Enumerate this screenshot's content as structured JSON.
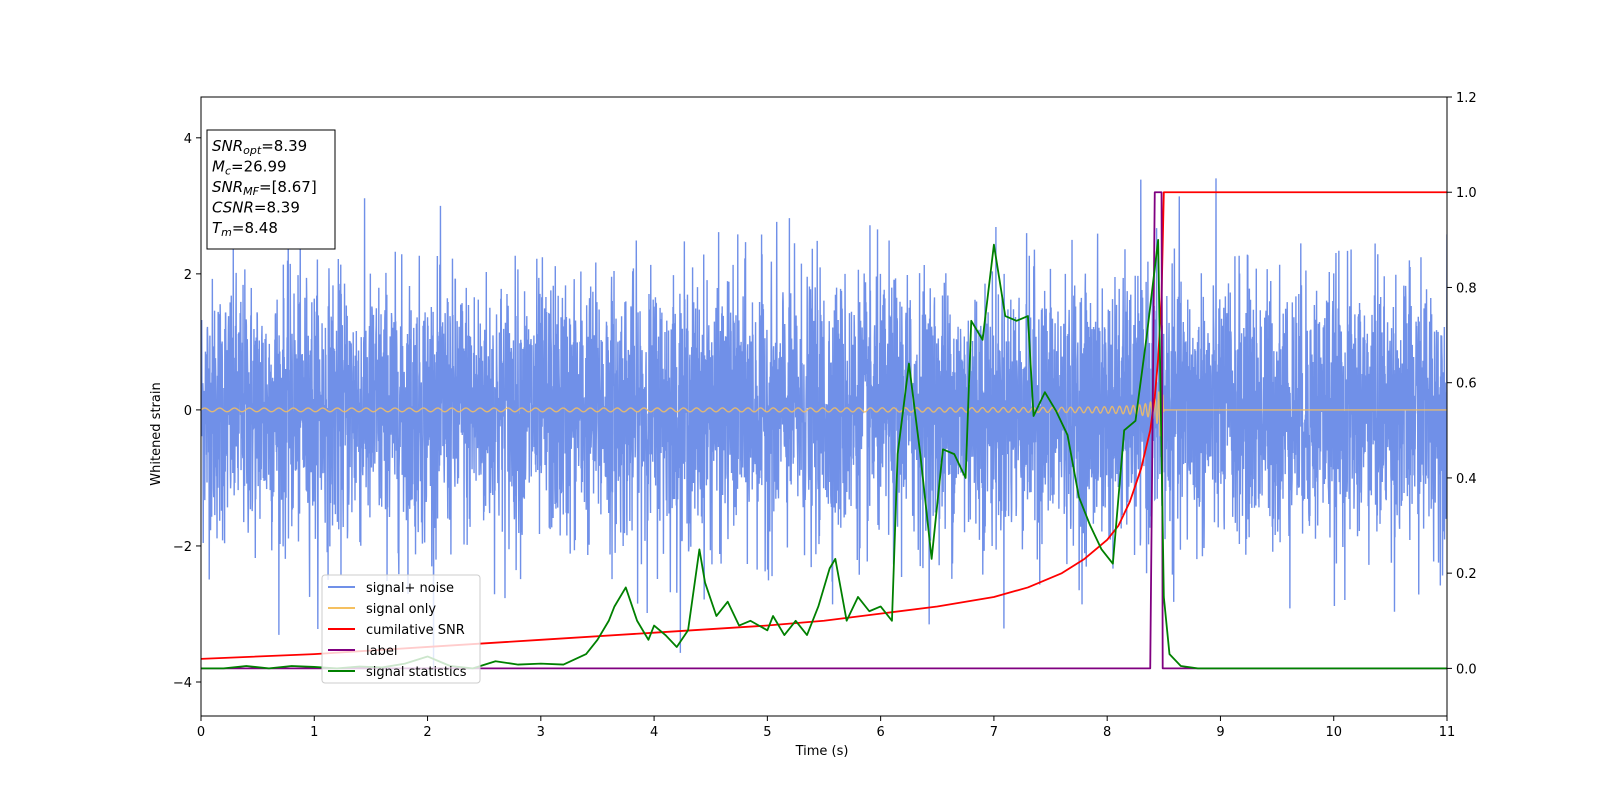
{
  "chart_data": {
    "type": "line",
    "xlabel": "Time (s)",
    "ylabel": "Whitened strain",
    "xlim": [
      0,
      11
    ],
    "ylim_left": [
      -4.5,
      4.6
    ],
    "ylim_right": [
      -0.1,
      1.2
    ],
    "x_ticks": [
      0,
      1,
      2,
      3,
      4,
      5,
      6,
      7,
      8,
      9,
      10,
      11
    ],
    "y_ticks_left": [
      -4,
      -2,
      0,
      2,
      4
    ],
    "y_ticks_right": [
      0.0,
      0.2,
      0.4,
      0.6,
      0.8,
      1.0,
      1.2
    ],
    "legend_position": "lower-left",
    "grid": false,
    "annotation": {
      "lines": [
        {
          "var": "SNR",
          "sub": "opt",
          "text": "=8.39"
        },
        {
          "var": "M",
          "sub": "c",
          "text": "=26.99"
        },
        {
          "var": "SNR",
          "sub": "MF",
          "text": "=[8.67]"
        },
        {
          "var": "CSNR",
          "sub": "",
          "text": "=8.39"
        },
        {
          "var": "T",
          "sub": "m",
          "text": "=8.48"
        }
      ]
    },
    "series": [
      {
        "name": "signal+ noise",
        "axis": "left",
        "color": "#7090e8",
        "noise_band": {
          "typical_min": -2.0,
          "typical_max": 2.0,
          "spike_max": 4.2,
          "spike_min": -4.0
        }
      },
      {
        "name": "signal only",
        "axis": "left",
        "color": "#f5c060",
        "chirp": {
          "start": 0,
          "merger": 8.48,
          "end": 8.5,
          "amplitude_peak": 1.0
        }
      },
      {
        "name": "cumilative SNR",
        "axis": "right",
        "color": "#ff0000",
        "x": [
          0,
          1,
          2,
          3,
          4,
          5,
          5.5,
          6,
          6.5,
          7,
          7.3,
          7.6,
          7.8,
          8.0,
          8.1,
          8.2,
          8.3,
          8.38,
          8.42,
          8.45,
          8.48,
          8.5,
          9,
          10,
          11
        ],
        "values": [
          0.02,
          0.03,
          0.045,
          0.06,
          0.075,
          0.09,
          0.1,
          0.115,
          0.13,
          0.15,
          0.17,
          0.2,
          0.23,
          0.27,
          0.3,
          0.35,
          0.42,
          0.5,
          0.57,
          0.65,
          0.78,
          1.0,
          1.0,
          1.0,
          1.0
        ]
      },
      {
        "name": "label",
        "axis": "right",
        "color": "#800080",
        "x": [
          0,
          8.38,
          8.42,
          8.48,
          8.49,
          11
        ],
        "values": [
          0,
          0,
          1.0,
          1.0,
          0,
          0
        ]
      },
      {
        "name": "signal statistics",
        "axis": "right",
        "color": "#008000",
        "x": [
          0,
          0.2,
          0.4,
          0.6,
          0.8,
          1.0,
          1.2,
          1.4,
          1.6,
          1.8,
          2.0,
          2.1,
          2.2,
          2.4,
          2.6,
          2.8,
          3.0,
          3.2,
          3.4,
          3.5,
          3.6,
          3.65,
          3.75,
          3.85,
          3.95,
          4.0,
          4.1,
          4.2,
          4.3,
          4.4,
          4.45,
          4.55,
          4.65,
          4.75,
          4.85,
          5.0,
          5.05,
          5.15,
          5.25,
          5.35,
          5.45,
          5.55,
          5.6,
          5.7,
          5.8,
          5.9,
          6.0,
          6.1,
          6.15,
          6.25,
          6.35,
          6.45,
          6.55,
          6.65,
          6.75,
          6.8,
          6.9,
          7.0,
          7.1,
          7.2,
          7.3,
          7.35,
          7.45,
          7.55,
          7.65,
          7.75,
          7.85,
          7.95,
          8.05,
          8.15,
          8.25,
          8.35,
          8.45,
          8.5,
          8.55,
          8.65,
          8.8,
          9.0,
          10.0,
          11.0
        ],
        "values": [
          0.0,
          0.0,
          0.005,
          0.0,
          0.005,
          0.003,
          0.0,
          0.004,
          0.002,
          0.01,
          0.025,
          0.015,
          0.005,
          0.0,
          0.015,
          0.008,
          0.01,
          0.008,
          0.03,
          0.06,
          0.1,
          0.13,
          0.17,
          0.1,
          0.06,
          0.09,
          0.07,
          0.045,
          0.08,
          0.25,
          0.18,
          0.11,
          0.14,
          0.09,
          0.1,
          0.08,
          0.11,
          0.07,
          0.1,
          0.07,
          0.13,
          0.21,
          0.23,
          0.1,
          0.15,
          0.12,
          0.13,
          0.1,
          0.45,
          0.64,
          0.45,
          0.23,
          0.46,
          0.45,
          0.4,
          0.73,
          0.69,
          0.89,
          0.74,
          0.73,
          0.74,
          0.53,
          0.58,
          0.54,
          0.49,
          0.36,
          0.3,
          0.25,
          0.22,
          0.5,
          0.52,
          0.7,
          0.9,
          0.15,
          0.03,
          0.005,
          0.0,
          0.0,
          0.0,
          0.0
        ]
      }
    ]
  }
}
